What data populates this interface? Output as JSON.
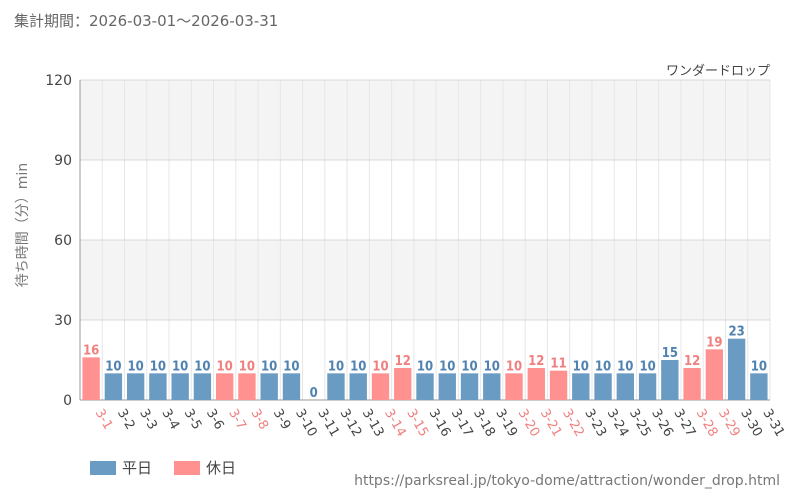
{
  "header": {
    "period_label": "集計期間：2026-03-01～2026-03-31"
  },
  "chart_data": {
    "type": "bar",
    "subtitle": "ワンダードロップ",
    "ylabel": "待ち時間（分）min",
    "ylim": [
      0,
      120
    ],
    "yticks": [
      0,
      30,
      60,
      90,
      120
    ],
    "grid": true,
    "legend_position": "bottom-left",
    "categories": [
      "3-1",
      "3-2",
      "3-3",
      "3-4",
      "3-5",
      "3-6",
      "3-7",
      "3-8",
      "3-9",
      "3-10",
      "3-11",
      "3-12",
      "3-13",
      "3-14",
      "3-15",
      "3-16",
      "3-17",
      "3-18",
      "3-19",
      "3-20",
      "3-21",
      "3-22",
      "3-23",
      "3-24",
      "3-25",
      "3-26",
      "3-27",
      "3-28",
      "3-29",
      "3-30",
      "3-31"
    ],
    "values": [
      16,
      10,
      10,
      10,
      10,
      10,
      10,
      10,
      10,
      10,
      0,
      10,
      10,
      10,
      12,
      10,
      10,
      10,
      10,
      10,
      12,
      11,
      10,
      10,
      10,
      10,
      15,
      12,
      19,
      23,
      10
    ],
    "day_types": [
      "休日",
      "平日",
      "平日",
      "平日",
      "平日",
      "平日",
      "休日",
      "休日",
      "平日",
      "平日",
      "平日",
      "平日",
      "平日",
      "休日",
      "休日",
      "平日",
      "平日",
      "平日",
      "平日",
      "休日",
      "休日",
      "休日",
      "平日",
      "平日",
      "平日",
      "平日",
      "平日",
      "休日",
      "休日",
      "平日",
      "平日"
    ],
    "series": [
      {
        "name": "平日",
        "color": "#6a9bc3"
      },
      {
        "name": "休日",
        "color": "#ff9191"
      }
    ]
  },
  "legend": {
    "weekday_label": "平日",
    "holiday_label": "休日"
  },
  "source": {
    "url_text": "https://parksreal.jp/tokyo-dome/attraction/wonder_drop.html"
  }
}
